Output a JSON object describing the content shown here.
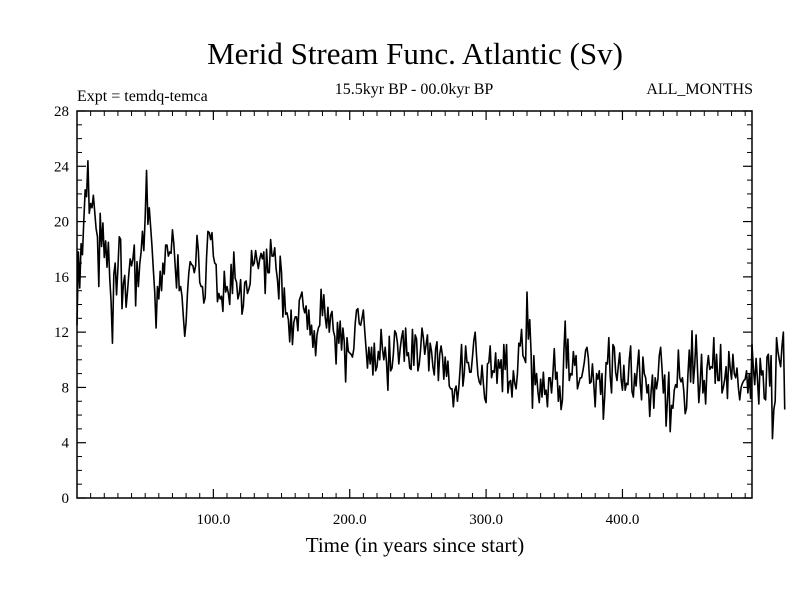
{
  "chart_data": {
    "type": "line",
    "title": "Merid Stream Func. Atlantic (Sv)",
    "subtitle_left": "Expt = temdq-temca",
    "subtitle_center": "15.5kyr BP - 00.0kyr BP",
    "subtitle_right": "ALL_MONTHS",
    "xlabel": "Time (in years since start)",
    "ylabel": "",
    "xlim": [
      0,
      495
    ],
    "ylim": [
      0,
      28
    ],
    "x_ticks": [
      100,
      200,
      300,
      400
    ],
    "x_tick_labels": [
      "100.0",
      "200.0",
      "300.0",
      "400.0"
    ],
    "y_ticks": [
      0,
      4,
      8,
      12,
      16,
      20,
      24,
      28
    ],
    "y_tick_labels": [
      "0",
      "4",
      "8",
      "12",
      "16",
      "20",
      "24",
      "28"
    ],
    "grid": false,
    "line_color": "#000000",
    "series": [
      {
        "name": "Merid Stream Func. Atlantic",
        "x_start": 0,
        "x_step": 1,
        "values": [
          12.5,
          17.8,
          15.2,
          18.4,
          17.6,
          20.1,
          22.3,
          21.8,
          24.4,
          20.6,
          21.3,
          21.0,
          21.9,
          20.7,
          19.5,
          18.9,
          15.3,
          20.6,
          18.2,
          19.9,
          17.4,
          18.6,
          16.7,
          18.5,
          15.9,
          14.2,
          11.2,
          16.2,
          17.0,
          14.7,
          16.6,
          18.9,
          18.7,
          13.7,
          15.5,
          16.1,
          13.8,
          14.9,
          16.2,
          17.3,
          16.8,
          17.3,
          18.3,
          13.9,
          17.1,
          15.3,
          16.9,
          17.8,
          19.3,
          17.9,
          20.3,
          23.7,
          19.8,
          21.0,
          19.6,
          18.2,
          16.5,
          14.9,
          12.3,
          15.3,
          14.4,
          16.4,
          15.0,
          17.0,
          16.2,
          18.3,
          18.3,
          17.5,
          17.8,
          17.7,
          19.4,
          18.4,
          16.8,
          15.2,
          17.6,
          15.0,
          15.3,
          14.6,
          13.1,
          11.7,
          12.7,
          14.8,
          16.3,
          17.1,
          16.9,
          16.8,
          16.3,
          16.8,
          19.0,
          17.9,
          15.6,
          15.3,
          15.3,
          14.1,
          14.5,
          17.4,
          19.3,
          19.2,
          18.7,
          19.2,
          17.5,
          17.0,
          16.9,
          14.2,
          14.8,
          14.4,
          14.6,
          13.5,
          16.4,
          14.9,
          15.3,
          14.8,
          14.0,
          16.9,
          14.8,
          17.8,
          15.9,
          15.6,
          14.4,
          14.8,
          15.8,
          13.3,
          13.9,
          15.6,
          15.7,
          14.8,
          15.1,
          15.5,
          17.9,
          16.8,
          17.0,
          17.9,
          17.2,
          16.6,
          17.3,
          17.7,
          17.3,
          17.8,
          14.8,
          18.0,
          16.3,
          16.3,
          18.7,
          17.5,
          17.5,
          18.1,
          16.6,
          15.8,
          14.4,
          17.5,
          16.3,
          13.1,
          15.2,
          13.3,
          13.4,
          12.9,
          11.3,
          13.6,
          11.1,
          12.7,
          13.1,
          13.1,
          12.1,
          14.3,
          14.6,
          14.9,
          13.8,
          13.4,
          13.9,
          12.2,
          13.6,
          11.8,
          12.5,
          10.9,
          12.1,
          10.3,
          11.8,
          12.3,
          12.5,
          15.1,
          13.2,
          14.7,
          13.1,
          12.3,
          13.8,
          12.0,
          13.2,
          13.5,
          12.1,
          11.7,
          9.7,
          12.7,
          11.2,
          12.8,
          10.7,
          12.3,
          11.3,
          8.4,
          11.6,
          10.6,
          10.5,
          10.4,
          10.2,
          10.8,
          12.6,
          13.6,
          13.7,
          12.6,
          12.5,
          13.0,
          13.6,
          12.1,
          10.8,
          9.4,
          10.9,
          9.7,
          10.9,
          8.9,
          11.2,
          9.2,
          9.5,
          10.6,
          10.0,
          12.2,
          10.8,
          10.0,
          10.9,
          9.8,
          7.8,
          11.7,
          9.2,
          9.4,
          10.4,
          12.1,
          11.9,
          11.2,
          9.7,
          10.8,
          11.6,
          12.1,
          9.9,
          12.3,
          10.3,
          10.5,
          9.4,
          9.3,
          12.2,
          9.6,
          11.8,
          11.5,
          9.2,
          9.7,
          10.8,
          12.3,
          11.6,
          10.4,
          11.1,
          11.8,
          9.2,
          11.2,
          10.6,
          9.5,
          8.9,
          10.8,
          11.3,
          8.5,
          10.4,
          11.0,
          10.3,
          8.6,
          10.2,
          8.8,
          9.9,
          8.1,
          7.9,
          7.9,
          6.6,
          7.8,
          8.1,
          7.0,
          8.0,
          9.4,
          11.1,
          8.1,
          9.0,
          11.0,
          9.8,
          9.8,
          9.1,
          9.1,
          10.2,
          11.4,
          12.0,
          10.3,
          8.9,
          8.4,
          8.2,
          9.6,
          8.3,
          7.2,
          6.9,
          9.7,
          9.8,
          11.0,
          8.7,
          9.2,
          9.1,
          10.5,
          8.3,
          10.0,
          9.4,
          10.0,
          7.7,
          11.1,
          9.3,
          11.1,
          7.6,
          8.4,
          8.5,
          7.3,
          9.2,
          8.3,
          7.9,
          9.0,
          11.2,
          11.0,
          12.2,
          10.3,
          10.1,
          9.8,
          14.9,
          11.5,
          12.9,
          10.5,
          6.5,
          10.3,
          8.2,
          9.0,
          7.7,
          6.9,
          8.6,
          7.3,
          9.1,
          7.5,
          7.8,
          6.6,
          8.7,
          8.7,
          7.6,
          9.0,
          10.8,
          8.6,
          9.1,
          7.0,
          8.1,
          6.4,
          7.1,
          10.5,
          12.8,
          9.4,
          11.5,
          8.5,
          9.0,
          8.9,
          10.6,
          9.6,
          10.3,
          7.9,
          8.3,
          8.7,
          8.7,
          9.2,
          9.8,
          10.7,
          10.9,
          10.1,
          8.3,
          8.4,
          9.7,
          8.2,
          6.6,
          9.0,
          8.6,
          9.2,
          7.5,
          9.0,
          5.7,
          7.4,
          9.8,
          9.7,
          11.6,
          8.8,
          7.6,
          11.1,
          10.9,
          9.1,
          8.5,
          9.6,
          10.5,
          8.6,
          7.8,
          9.6,
          7.8,
          8.3,
          8.2,
          10.0,
          11.0,
          7.7,
          7.3,
          9.0,
          8.1,
          9.5,
          10.7,
          8.3,
          7.1,
          10.2,
          9.0,
          8.7,
          7.6,
          8.2,
          5.9,
          7.7,
          8.9,
          6.5,
          8.7,
          7.9,
          8.6,
          10.3,
          10.9,
          9.4,
          7.6,
          8.9,
          5.2,
          7.1,
          9.1,
          4.8,
          6.7,
          6.5,
          7.8,
          8.2,
          8.0,
          10.7,
          8.7,
          8.4,
          8.7,
          7.7,
          6.1,
          6.5,
          8.9,
          10.7,
          8.4,
          12.1,
          8.3,
          9.6,
          11.8,
          9.4,
          6.9,
          8.3,
          10.4,
          7.6,
          8.5,
          6.8,
          9.4,
          10.3,
          9.3,
          9.5,
          9.4,
          11.6,
          8.3,
          10.4,
          8.5,
          8.5,
          11.1,
          7.6,
          8.0,
          8.6,
          9.5,
          7.2,
          10.6,
          9.4,
          8.6,
          10.4,
          9.0,
          8.7,
          9.4,
          8.0,
          7.1,
          8.0,
          8.3,
          8.5,
          8.6,
          9.2,
          7.6,
          9.0,
          7.2,
          11.1,
          9.4,
          8.2,
          10.1,
          8.6,
          6.8,
          10.1,
          8.9,
          9.2,
          7.2,
          7.1,
          10.2,
          10.4,
          8.1,
          10.3,
          4.3,
          6.4,
          7.0,
          11.6,
          10.6,
          10.0,
          9.5,
          11.0,
          12.0,
          6.4
        ]
      }
    ]
  }
}
